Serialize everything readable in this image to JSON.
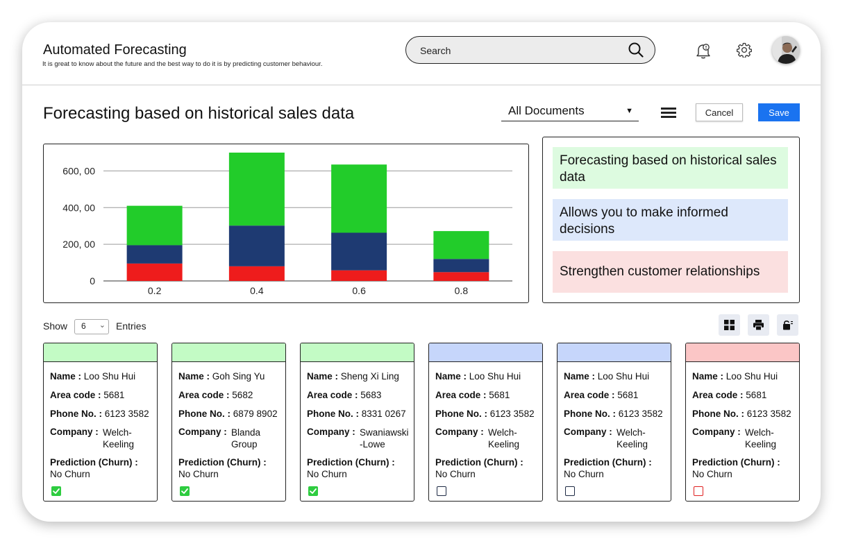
{
  "header": {
    "title": "Automated Forecasting",
    "subtitle": "It is great to know about the future and the best way to do it is by predicting customer behaviour.",
    "search_placeholder": "Search"
  },
  "toolbar": {
    "page_title": "Forecasting based on historical sales data",
    "documents_select": "All Documents",
    "cancel_label": "Cancel",
    "save_label": "Save"
  },
  "chart_data": {
    "type": "bar",
    "stacked": true,
    "categories": [
      "0.2",
      "0.4",
      "0.6",
      "0.8"
    ],
    "series": [
      {
        "color": "#ee1c1c",
        "values": [
          95,
          80,
          58,
          48
        ]
      },
      {
        "color": "#1e3a72",
        "values": [
          100,
          222,
          205,
          72
        ]
      },
      {
        "color": "#22cc2a",
        "values": [
          215,
          398,
          372,
          152
        ]
      }
    ],
    "y_ticks": [
      "0",
      "200, 00",
      "400, 00",
      "600, 00"
    ],
    "y_tick_values": [
      0,
      200,
      400,
      600
    ],
    "ylim": [
      0,
      700
    ],
    "grid": true
  },
  "info": [
    {
      "text": "Forecasting based on historical sales data",
      "color": "#ddfbe0"
    },
    {
      "text": "Allows you to make informed decisions",
      "color": "#dde8fb"
    },
    {
      "text": "Strengthen customer relationships",
      "color": "#fbe0e0"
    }
  ],
  "entries": {
    "show_label": "Show",
    "value": "6",
    "entries_label": "Entries"
  },
  "tools": [
    "grid-icon",
    "print-icon",
    "unlock-icon"
  ],
  "labels": {
    "name": "Name :",
    "area": "Area code :",
    "phone": "Phone No. :",
    "company": "Company :",
    "prediction": "Prediction (Churn) :"
  },
  "cards": [
    {
      "band": "#c3fbc5",
      "name": "Loo Shu Hui",
      "area": "5681",
      "phone": "6123 3582",
      "company": "Welch-Keeling",
      "prediction": "No Churn",
      "checked": true,
      "check_color": "#2ecc40"
    },
    {
      "band": "#c3fbc5",
      "name": "Goh Sing Yu",
      "area": "5682",
      "phone": "6879 8902",
      "company": "Blanda Group",
      "prediction": "No Churn",
      "checked": true,
      "check_color": "#2ecc40"
    },
    {
      "band": "#c3fbc5",
      "name": "Sheng Xi Ling",
      "area": "5683",
      "phone": "8331 0267",
      "company": "Swaniawski -Lowe",
      "prediction": "No Churn",
      "checked": true,
      "check_color": "#2ecc40"
    },
    {
      "band": "#c6d6fb",
      "name": "Loo Shu Hui",
      "area": "5681",
      "phone": "6123 3582",
      "company": "Welch-Keeling",
      "prediction": "No Churn",
      "checked": false,
      "check_color": "#1e2a44"
    },
    {
      "band": "#c6d6fb",
      "name": "Loo Shu Hui",
      "area": "5681",
      "phone": "6123 3582",
      "company": "Welch-Keeling",
      "prediction": "No Churn",
      "checked": false,
      "check_color": "#1e2a44"
    },
    {
      "band": "#fbc6c6",
      "name": "Loo Shu Hui",
      "area": "5681",
      "phone": "6123 3582",
      "company": "Welch-Keeling",
      "prediction": "No Churn",
      "checked": false,
      "check_color": "#e02020"
    }
  ]
}
